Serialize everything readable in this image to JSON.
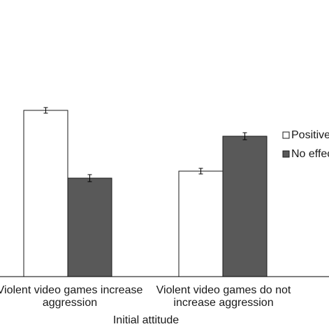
{
  "chart_data": {
    "type": "bar",
    "title": "",
    "xlabel": "Initial attitude",
    "ylabel": "",
    "categories": [
      [
        "Violent video games increase",
        "aggression"
      ],
      [
        "Violent video games do not",
        "increase aggression"
      ]
    ],
    "series": [
      {
        "name": "Positive",
        "color": "#ffffff",
        "values": [
          158,
          245
        ],
        "errors": [
          4,
          4
        ]
      },
      {
        "name": "No effect",
        "color": "#595959",
        "values": [
          255,
          195
        ],
        "errors": [
          5,
          5
        ]
      }
    ],
    "ylim": [
      396,
      100
    ],
    "grid": false,
    "legend_position": "right"
  }
}
